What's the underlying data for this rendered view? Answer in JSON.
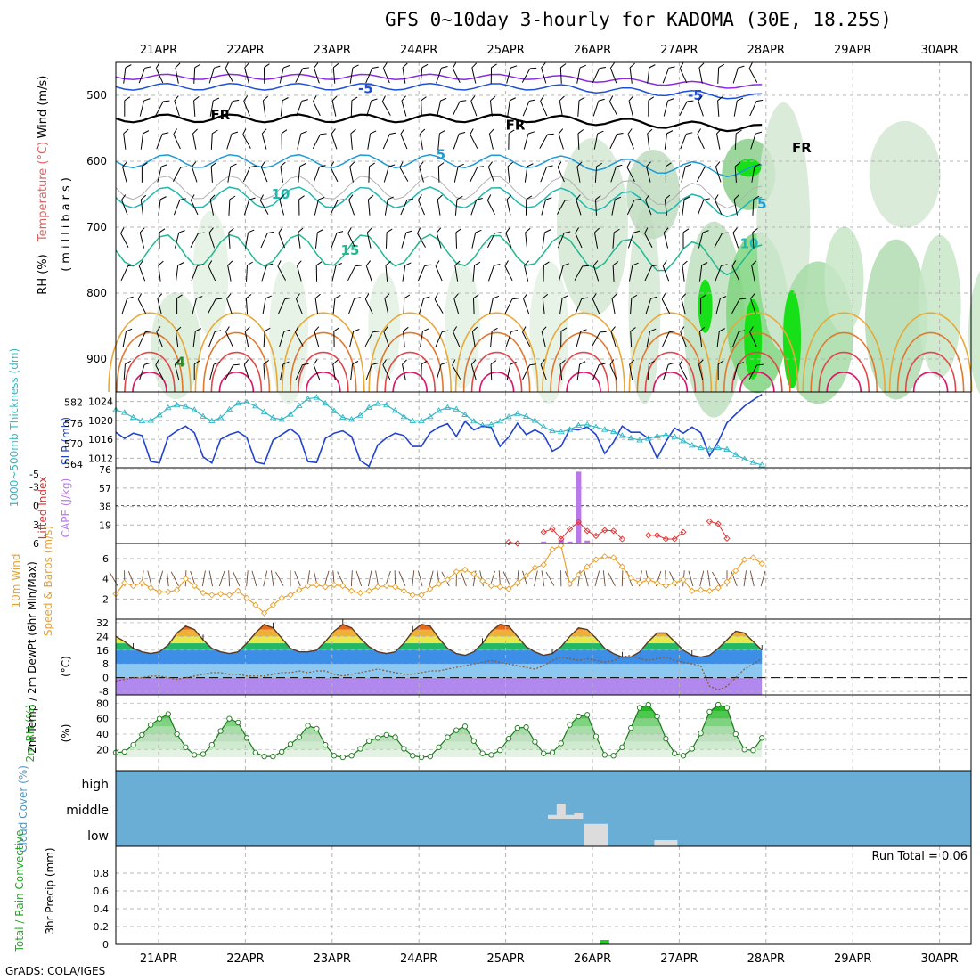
{
  "title": "GFS 0~10day 3-hourly for KADOMA (30E, 18.25S)",
  "credit": "GrADS: COLA/IGES",
  "colors": {
    "grid": "#b4b4b4",
    "wind_barb": "#000000",
    "temp_freezing": "#000000",
    "rh_green": "#22cc22",
    "sky_blue": "#6aaed6",
    "cloud_gray": "#dcdcdc",
    "cape_purple": "#bb77ee",
    "li_red": "#e03030",
    "slp_blue": "#2244cc",
    "thick_cyan": "#33b8c8",
    "wind_orange": "#e8a030",
    "dewpoint_brown": "#8b5a3c"
  },
  "chart_data": [
    {
      "type": "line",
      "panel": "upper-air",
      "title": "Temperature (°C) / Wind (m/s) / RH (%)",
      "ylabel": "(millibars)",
      "y_axis_label_parts": [
        "RH (%)",
        "Temperature (°C)",
        "Wind (m/s)"
      ],
      "pressure_ticks": [
        500,
        600,
        700,
        800,
        900
      ],
      "ylim": [
        950,
        450
      ],
      "x_ticks": [
        "21APR",
        "22APR",
        "23APR",
        "24APR",
        "25APR",
        "26APR",
        "27APR",
        "28APR",
        "29APR",
        "30APR"
      ],
      "isotherm_labels": [
        {
          "text": "-5",
          "level": 490,
          "day": 2.3
        },
        {
          "text": "-5",
          "level": 500,
          "day": 6.1
        },
        {
          "text": "FR",
          "level": 530,
          "day": 0.6
        },
        {
          "text": "FR",
          "level": 545,
          "day": 4.0
        },
        {
          "text": "FR",
          "level": 580,
          "day": 7.3
        },
        {
          "text": "5",
          "level": 590,
          "day": 3.2
        },
        {
          "text": "5",
          "level": 665,
          "day": 6.9
        },
        {
          "text": "10",
          "level": 650,
          "day": 1.3
        },
        {
          "text": "10",
          "level": 725,
          "day": 6.7
        },
        {
          "text": "15",
          "level": 735,
          "day": 2.1
        },
        {
          "text": "4",
          "level": 905,
          "day": 0.2
        }
      ]
    },
    {
      "type": "line",
      "panel": "slp-thickness",
      "title": "SLP (mb) / 1000-500mb Thickness (dm)",
      "y_left_label": "1000~500mb Thickness (dm)",
      "y_right_label": "SLP (mb)",
      "slp_ticks": [
        1012,
        1016,
        1020,
        1024
      ],
      "thickness_ticks": [
        564,
        570,
        576,
        582
      ],
      "series": [
        {
          "name": "SLP (mb)",
          "values": [
            1017.5,
            1016.2,
            1017.3,
            1016.8,
            1011.3,
            1011.0,
            1016.5,
            1017.8,
            1018.8,
            1017.4,
            1012.3,
            1011.0,
            1016.0,
            1017.0,
            1017.6,
            1016.4,
            1011.2,
            1010.8,
            1015.8,
            1017.0,
            1018.2,
            1016.8,
            1011.3,
            1011.1,
            1016.2,
            1017.3,
            1017.8,
            1016.6,
            1011.5,
            1010.3,
            1014.8,
            1016.3,
            1017.3,
            1016.8,
            1014.5,
            1014.5,
            1017.4,
            1018.6,
            1019.3,
            1016.6,
            1019.8,
            1018.0,
            1018.8,
            1018.5,
            1014.5,
            1016.5,
            1019.4,
            1017.0,
            1018.0,
            1017.0,
            1013.5,
            1014.5,
            1018.2,
            1018.0,
            1018.6,
            1017.0,
            1013.0,
            1015.4,
            1018.8,
            1017.5,
            1017.5,
            1016.2,
            1012.0,
            1015.5,
            1018.4,
            1017.3,
            1018.6,
            1017.4,
            1012.5,
            1015.5,
            1019.5,
            1021.3,
            1023.0,
            1024.3,
            1025.5
          ]
        },
        {
          "name": "1000-500mb Thickness (dm)",
          "values": [
            579.8,
            579.0,
            577.6,
            576.6,
            576.7,
            578.3,
            580.4,
            581.2,
            580.8,
            579.8,
            577.9,
            576.6,
            577.5,
            579.9,
            581.7,
            582.0,
            580.9,
            579.2,
            577.5,
            577.0,
            578.5,
            581.0,
            583.0,
            583.4,
            581.7,
            579.5,
            577.6,
            577.0,
            578.2,
            580.5,
            581.6,
            581.2,
            579.6,
            577.8,
            576.6,
            576.6,
            577.8,
            579.6,
            580.5,
            580.0,
            578.4,
            576.5,
            575.3,
            575.5,
            576.5,
            577.8,
            578.7,
            577.9,
            576.7,
            574.8,
            573.7,
            573.4,
            574.1,
            575.3,
            575.5,
            574.8,
            574.1,
            573.5,
            572.3,
            571.6,
            571.0,
            571.5,
            572.2,
            572.5,
            572.0,
            570.8,
            569.5,
            568.8,
            568.4,
            568.8,
            568.3,
            566.8,
            565.5,
            564.5,
            563.8
          ]
        }
      ]
    },
    {
      "type": "bar",
      "panel": "cape-li",
      "title": "CAPE (J/kg) / Lifted Index",
      "y_left_label": "Lifted Index",
      "y_right_label": "CAPE (J/kg)",
      "li_ticks": [
        -5,
        -3,
        0,
        3,
        6
      ],
      "cape_ticks": [
        19,
        38,
        57,
        76
      ],
      "cape_bars": [
        {
          "step": 49,
          "value": 2
        },
        {
          "step": 51,
          "value": 4
        },
        {
          "step": 52,
          "value": 2
        },
        {
          "step": 53,
          "value": 74
        },
        {
          "step": 54,
          "value": 3
        }
      ],
      "lifted_index_points": [
        [
          45,
          5.8
        ],
        [
          46,
          6.0
        ],
        [
          49,
          4.2
        ],
        [
          50,
          3.7
        ],
        [
          51,
          5.3
        ],
        [
          52,
          3.7
        ],
        [
          53,
          2.6
        ],
        [
          54,
          4.0
        ],
        [
          55,
          4.8
        ],
        [
          56,
          3.9
        ],
        [
          57,
          4.0
        ],
        [
          58,
          5.3
        ],
        [
          61,
          4.7
        ],
        [
          62,
          4.7
        ],
        [
          63,
          5.3
        ],
        [
          64,
          5.3
        ],
        [
          65,
          4.2
        ],
        [
          68,
          2.5
        ],
        [
          69,
          2.9
        ],
        [
          70,
          5.2
        ]
      ]
    },
    {
      "type": "line",
      "panel": "wind10m",
      "title": "10m Wind Speed & Barbs",
      "y_left_label": "10m Wind",
      "y_right_label": "Speed & Barbs (m/s)",
      "yticks": [
        2,
        4,
        6
      ],
      "series": [
        {
          "name": "10m Wind Speed (m/s)",
          "values": [
            2.5,
            3.6,
            3.3,
            3.6,
            3.1,
            2.7,
            2.7,
            2.9,
            4.0,
            3.3,
            2.6,
            2.4,
            2.5,
            2.4,
            2.8,
            2.1,
            1.4,
            0.6,
            1.4,
            2.1,
            2.4,
            2.9,
            3.3,
            3.4,
            3.2,
            3.4,
            3.3,
            2.8,
            2.6,
            2.8,
            3.2,
            3.3,
            3.2,
            2.8,
            2.4,
            2.4,
            3.0,
            3.5,
            3.9,
            4.7,
            4.9,
            4.5,
            3.8,
            3.3,
            3.2,
            3.0,
            3.6,
            4.3,
            5.1,
            5.4,
            6.9,
            7.3,
            3.5,
            4.4,
            5.2,
            5.9,
            6.2,
            6.1,
            5.2,
            4.1,
            3.6,
            3.9,
            3.6,
            3.3,
            3.6,
            3.9,
            2.8,
            2.9,
            2.8,
            3.1,
            3.7,
            4.8,
            5.9,
            6.1,
            5.5
          ]
        }
      ]
    },
    {
      "type": "area",
      "panel": "temperature2m",
      "title": "2m Temp / 2m DewPt (6hr Min/Max)",
      "ylabel": "(°C)",
      "yticks": [
        -8,
        0,
        8,
        16,
        24,
        32
      ],
      "series": [
        {
          "name": "2m Temp (°C)",
          "values": [
            24,
            21,
            17,
            15,
            14,
            15,
            19,
            26,
            30,
            28,
            22,
            17,
            15,
            14,
            15,
            20,
            26,
            31,
            29,
            23,
            17,
            15,
            15,
            16,
            21,
            27,
            31,
            29,
            23,
            18,
            15,
            14,
            15,
            20,
            27,
            31,
            30,
            23,
            17,
            14,
            13,
            15,
            20,
            27,
            31,
            30,
            24,
            18,
            15,
            13,
            14,
            18,
            24,
            29,
            28,
            23,
            17,
            14,
            12,
            12,
            15,
            21,
            26,
            26,
            21,
            16,
            13,
            12,
            13,
            17,
            22,
            27,
            26,
            21,
            16
          ]
        },
        {
          "name": "2m DewPt (°C)",
          "values": [
            -2,
            -1,
            0,
            0,
            1,
            1,
            0,
            -1,
            0,
            1,
            2,
            3,
            3,
            2,
            2,
            1,
            1,
            1,
            2,
            3,
            3,
            4,
            3,
            4,
            4,
            2,
            1,
            2,
            3,
            4,
            5,
            4,
            3,
            2,
            2,
            3,
            4,
            4,
            5,
            6,
            7,
            8,
            9,
            10,
            9,
            8,
            7,
            6,
            5,
            7,
            10,
            12,
            11,
            10,
            11,
            10,
            9,
            10,
            12,
            13,
            11,
            10,
            11,
            12,
            10,
            9,
            8,
            7,
            -5,
            -7,
            -5,
            0,
            5,
            8,
            11
          ]
        }
      ]
    },
    {
      "type": "area",
      "panel": "rh2m",
      "title": "2m RH (%)",
      "ylabel": "(%)",
      "yticks": [
        20,
        40,
        60,
        80
      ],
      "series": [
        {
          "name": "2m RH (%)",
          "values": [
            16,
            17,
            26,
            39,
            52,
            60,
            66,
            40,
            23,
            13,
            14,
            26,
            44,
            60,
            55,
            35,
            16,
            11,
            11,
            17,
            27,
            36,
            51,
            47,
            26,
            12,
            10,
            12,
            21,
            31,
            35,
            39,
            36,
            21,
            12,
            10,
            11,
            23,
            36,
            45,
            50,
            31,
            15,
            13,
            19,
            34,
            48,
            49,
            30,
            15,
            16,
            28,
            52,
            63,
            65,
            37,
            13,
            12,
            23,
            48,
            74,
            78,
            63,
            34,
            15,
            12,
            21,
            41,
            69,
            78,
            74,
            40,
            20,
            19,
            35
          ]
        }
      ]
    },
    {
      "type": "bar",
      "panel": "cloud-cover",
      "title": "Cloud Cover (%)",
      "levels": [
        "high",
        "middle",
        "low"
      ],
      "middle_cloud_steps": [
        {
          "step": 50,
          "value": 15
        },
        {
          "step": 51,
          "value": 60
        },
        {
          "step": 52,
          "value": 15
        },
        {
          "step": 53,
          "value": 25
        }
      ],
      "low_cloud_steps": [
        {
          "step": 55,
          "value": 90
        },
        {
          "step": 63,
          "value": 25
        }
      ]
    },
    {
      "type": "bar",
      "panel": "precipitation",
      "title": "3hr Precip (mm)",
      "y_left_label": "Total / Rain Convective",
      "yticks": [
        0,
        0.2,
        0.4,
        0.6,
        0.8
      ],
      "run_total": "Run Total = 0.06",
      "bars": [
        {
          "step": 56,
          "value": 0.05
        }
      ],
      "x_ticks": [
        "21APR",
        "22APR",
        "23APR",
        "24APR",
        "25APR",
        "26APR",
        "27APR",
        "28APR",
        "29APR",
        "30APR"
      ]
    }
  ]
}
